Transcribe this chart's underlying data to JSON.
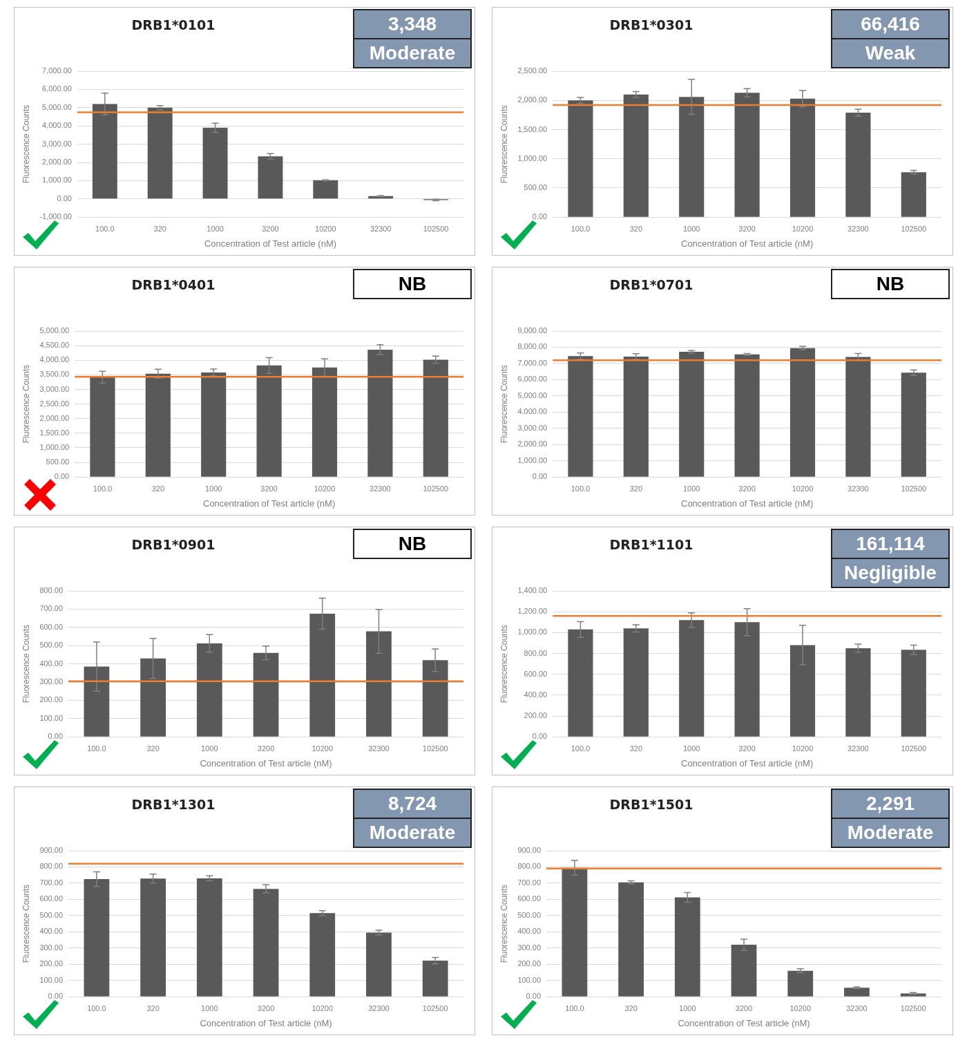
{
  "chart_data": [
    {
      "type": "bar",
      "title": "DRB1*0101",
      "xlabel": "Concentration of Test article (nM)",
      "ylabel": "Fluorescence Counts",
      "categories": [
        "100.0",
        "320",
        "1000",
        "3200",
        "10200",
        "32300",
        "102500"
      ],
      "values": [
        5200,
        5000,
        3900,
        2330,
        1020,
        150,
        -60
      ],
      "errors": [
        600,
        120,
        250,
        150,
        20,
        30,
        40
      ],
      "color": "#595959",
      "ylim": [
        -1000,
        7000
      ],
      "yticks": [
        {
          "value": -1000,
          "label": "-1,000.00"
        },
        {
          "value": 0,
          "label": "0.00"
        },
        {
          "value": 1000,
          "label": "1,000.00"
        },
        {
          "value": 2000,
          "label": "2,000.00"
        },
        {
          "value": 3000,
          "label": "3,000.00"
        },
        {
          "value": 4000,
          "label": "4,000.00"
        },
        {
          "value": 5000,
          "label": "5,000.00"
        },
        {
          "value": 6000,
          "label": "6,000.00"
        },
        {
          "value": 7000,
          "label": "7,000.00"
        }
      ],
      "grid": "y",
      "ref_lines": [
        {
          "axis": "y",
          "value": 4750,
          "color": "#ed7d31"
        }
      ],
      "annotations": [
        "3,348",
        "Moderate"
      ]
    },
    {
      "type": "bar",
      "title": "DRB1*0301",
      "xlabel": "Concentration of Test article (nM)",
      "ylabel": "Fluorescence Counts",
      "categories": [
        "100.0",
        "320",
        "1000",
        "3200",
        "10200",
        "32300",
        "102500"
      ],
      "values": [
        2000,
        2100,
        2060,
        2130,
        2030,
        1790,
        770
      ],
      "errors": [
        50,
        50,
        300,
        70,
        140,
        60,
        30
      ],
      "color": "#595959",
      "ylim": [
        0,
        2500
      ],
      "yticks": [
        {
          "value": 0,
          "label": "0.00"
        },
        {
          "value": 500,
          "label": "500.00"
        },
        {
          "value": 1000,
          "label": "1,000.00"
        },
        {
          "value": 1500,
          "label": "1,500.00"
        },
        {
          "value": 2000,
          "label": "2,000.00"
        },
        {
          "value": 2500,
          "label": "2,500.00"
        }
      ],
      "grid": "y",
      "ref_lines": [
        {
          "axis": "y",
          "value": 1920,
          "color": "#ed7d31"
        }
      ],
      "annotations": [
        "66,416",
        "Weak"
      ]
    },
    {
      "type": "bar",
      "title": "DRB1*0401",
      "xlabel": "Concentration of Test article (nM)",
      "ylabel": "Fluorescence Counts",
      "categories": [
        "100.0",
        "320",
        "1000",
        "3200",
        "10200",
        "32300",
        "102500"
      ],
      "values": [
        3420,
        3540,
        3580,
        3820,
        3750,
        4360,
        4020
      ],
      "errors": [
        200,
        150,
        120,
        270,
        300,
        170,
        120
      ],
      "color": "#595959",
      "ylim": [
        0,
        5000
      ],
      "yticks": [
        {
          "value": 0,
          "label": "0.00"
        },
        {
          "value": 500,
          "label": "500.00"
        },
        {
          "value": 1000,
          "label": "1,000.00"
        },
        {
          "value": 1500,
          "label": "1,500.00"
        },
        {
          "value": 2000,
          "label": "2,000.00"
        },
        {
          "value": 2500,
          "label": "2,500.00"
        },
        {
          "value": 3000,
          "label": "3,000.00"
        },
        {
          "value": 3500,
          "label": "3,500.00"
        },
        {
          "value": 4000,
          "label": "4,000.00"
        },
        {
          "value": 4500,
          "label": "4,500.00"
        },
        {
          "value": 5000,
          "label": "5,000.00"
        }
      ],
      "grid": "y",
      "ref_lines": [
        {
          "axis": "y",
          "value": 3430,
          "color": "#ed7d31"
        }
      ],
      "annotations": [
        "NB"
      ]
    },
    {
      "type": "bar",
      "title": "DRB1*0701",
      "xlabel": "Concentration of Test article (nM)",
      "ylabel": "Fluorescence Counts",
      "categories": [
        "100.0",
        "320",
        "1000",
        "3200",
        "10200",
        "32300",
        "102500"
      ],
      "values": [
        7450,
        7420,
        7720,
        7560,
        7950,
        7400,
        6430
      ],
      "errors": [
        200,
        180,
        80,
        50,
        100,
        220,
        170
      ],
      "color": "#595959",
      "ylim": [
        0,
        9000
      ],
      "yticks": [
        {
          "value": 0,
          "label": "0.00"
        },
        {
          "value": 1000,
          "label": "1,000.00"
        },
        {
          "value": 2000,
          "label": "2,000.00"
        },
        {
          "value": 3000,
          "label": "3,000.00"
        },
        {
          "value": 4000,
          "label": "4,000.00"
        },
        {
          "value": 5000,
          "label": "5,000.00"
        },
        {
          "value": 6000,
          "label": "6,000.00"
        },
        {
          "value": 7000,
          "label": "7,000.00"
        },
        {
          "value": 8000,
          "label": "8,000.00"
        },
        {
          "value": 9000,
          "label": "9,000.00"
        }
      ],
      "grid": "y",
      "ref_lines": [
        {
          "axis": "y",
          "value": 7200,
          "color": "#ed7d31"
        }
      ],
      "annotations": [
        "NB"
      ]
    },
    {
      "type": "bar",
      "title": "DRB1*0901",
      "xlabel": "Concentration of Test article (nM)",
      "ylabel": "Fluorescence Counts",
      "categories": [
        "100.0",
        "320",
        "1000",
        "3200",
        "10200",
        "32300",
        "102500"
      ],
      "values": [
        385,
        430,
        512,
        460,
        675,
        578,
        420
      ],
      "errors": [
        135,
        110,
        48,
        38,
        85,
        120,
        62
      ],
      "color": "#595959",
      "ylim": [
        0,
        800
      ],
      "yticks": [
        {
          "value": 0,
          "label": "0.00"
        },
        {
          "value": 100,
          "label": "100.00"
        },
        {
          "value": 200,
          "label": "200.00"
        },
        {
          "value": 300,
          "label": "300.00"
        },
        {
          "value": 400,
          "label": "400.00"
        },
        {
          "value": 500,
          "label": "500.00"
        },
        {
          "value": 600,
          "label": "600.00"
        },
        {
          "value": 700,
          "label": "700.00"
        },
        {
          "value": 800,
          "label": "800.00"
        }
      ],
      "grid": "y",
      "ref_lines": [
        {
          "axis": "y",
          "value": 305,
          "color": "#ed7d31"
        }
      ],
      "annotations": [
        "NB"
      ]
    },
    {
      "type": "bar",
      "title": "DRB1*1101",
      "xlabel": "Concentration of Test article (nM)",
      "ylabel": "Fluorescence Counts",
      "categories": [
        "100.0",
        "320",
        "1000",
        "3200",
        "10200",
        "32300",
        "102500"
      ],
      "values": [
        1030,
        1040,
        1120,
        1100,
        880,
        850,
        835
      ],
      "errors": [
        75,
        35,
        70,
        130,
        190,
        40,
        45
      ],
      "color": "#595959",
      "ylim": [
        0,
        1400
      ],
      "yticks": [
        {
          "value": 0,
          "label": "0.00"
        },
        {
          "value": 200,
          "label": "200.00"
        },
        {
          "value": 400,
          "label": "400.00"
        },
        {
          "value": 600,
          "label": "600.00"
        },
        {
          "value": 800,
          "label": "800.00"
        },
        {
          "value": 1000,
          "label": "1,000.00"
        },
        {
          "value": 1200,
          "label": "1,200.00"
        },
        {
          "value": 1400,
          "label": "1,400.00"
        }
      ],
      "grid": "y",
      "ref_lines": [
        {
          "axis": "y",
          "value": 1160,
          "color": "#ed7d31"
        }
      ],
      "annotations": [
        "161,114",
        "Negligible"
      ]
    },
    {
      "type": "bar",
      "title": "DRB1*1301",
      "xlabel": "Concentration of Test article (nM)",
      "ylabel": "Fluorescence Counts",
      "categories": [
        "100.0",
        "320",
        "1000",
        "3200",
        "10200",
        "32300",
        "102500"
      ],
      "values": [
        725,
        728,
        730,
        665,
        515,
        395,
        222
      ],
      "errors": [
        45,
        28,
        15,
        25,
        15,
        15,
        20
      ],
      "color": "#595959",
      "ylim": [
        0,
        900
      ],
      "yticks": [
        {
          "value": 0,
          "label": "0.00"
        },
        {
          "value": 100,
          "label": "100.00"
        },
        {
          "value": 200,
          "label": "200.00"
        },
        {
          "value": 300,
          "label": "300.00"
        },
        {
          "value": 400,
          "label": "400.00"
        },
        {
          "value": 500,
          "label": "500.00"
        },
        {
          "value": 600,
          "label": "600.00"
        },
        {
          "value": 700,
          "label": "700.00"
        },
        {
          "value": 800,
          "label": "800.00"
        },
        {
          "value": 900,
          "label": "900.00"
        }
      ],
      "grid": "y",
      "ref_lines": [
        {
          "axis": "y",
          "value": 820,
          "color": "#ed7d31"
        }
      ],
      "annotations": [
        "8,724",
        "Moderate"
      ]
    },
    {
      "type": "bar",
      "title": "DRB1*1501",
      "xlabel": "Concentration of Test article (nM)",
      "ylabel": "Fluorescence Counts",
      "categories": [
        "100.0",
        "320",
        "1000",
        "3200",
        "10200",
        "32300",
        "102500"
      ],
      "values": [
        795,
        705,
        612,
        320,
        160,
        55,
        20
      ],
      "errors": [
        45,
        10,
        30,
        35,
        12,
        5,
        5
      ],
      "color": "#595959",
      "ylim": [
        0,
        900
      ],
      "yticks": [
        {
          "value": 0,
          "label": "0.00"
        },
        {
          "value": 100,
          "label": "100.00"
        },
        {
          "value": 200,
          "label": "200.00"
        },
        {
          "value": 300,
          "label": "300.00"
        },
        {
          "value": 400,
          "label": "400.00"
        },
        {
          "value": 500,
          "label": "500.00"
        },
        {
          "value": 600,
          "label": "600.00"
        },
        {
          "value": 700,
          "label": "700.00"
        },
        {
          "value": 800,
          "label": "800.00"
        },
        {
          "value": 900,
          "label": "900.00"
        }
      ],
      "grid": "y",
      "ref_lines": [
        {
          "axis": "y",
          "value": 790,
          "color": "#ed7d31"
        }
      ],
      "annotations": [
        "2,291",
        "Moderate"
      ]
    }
  ]
}
